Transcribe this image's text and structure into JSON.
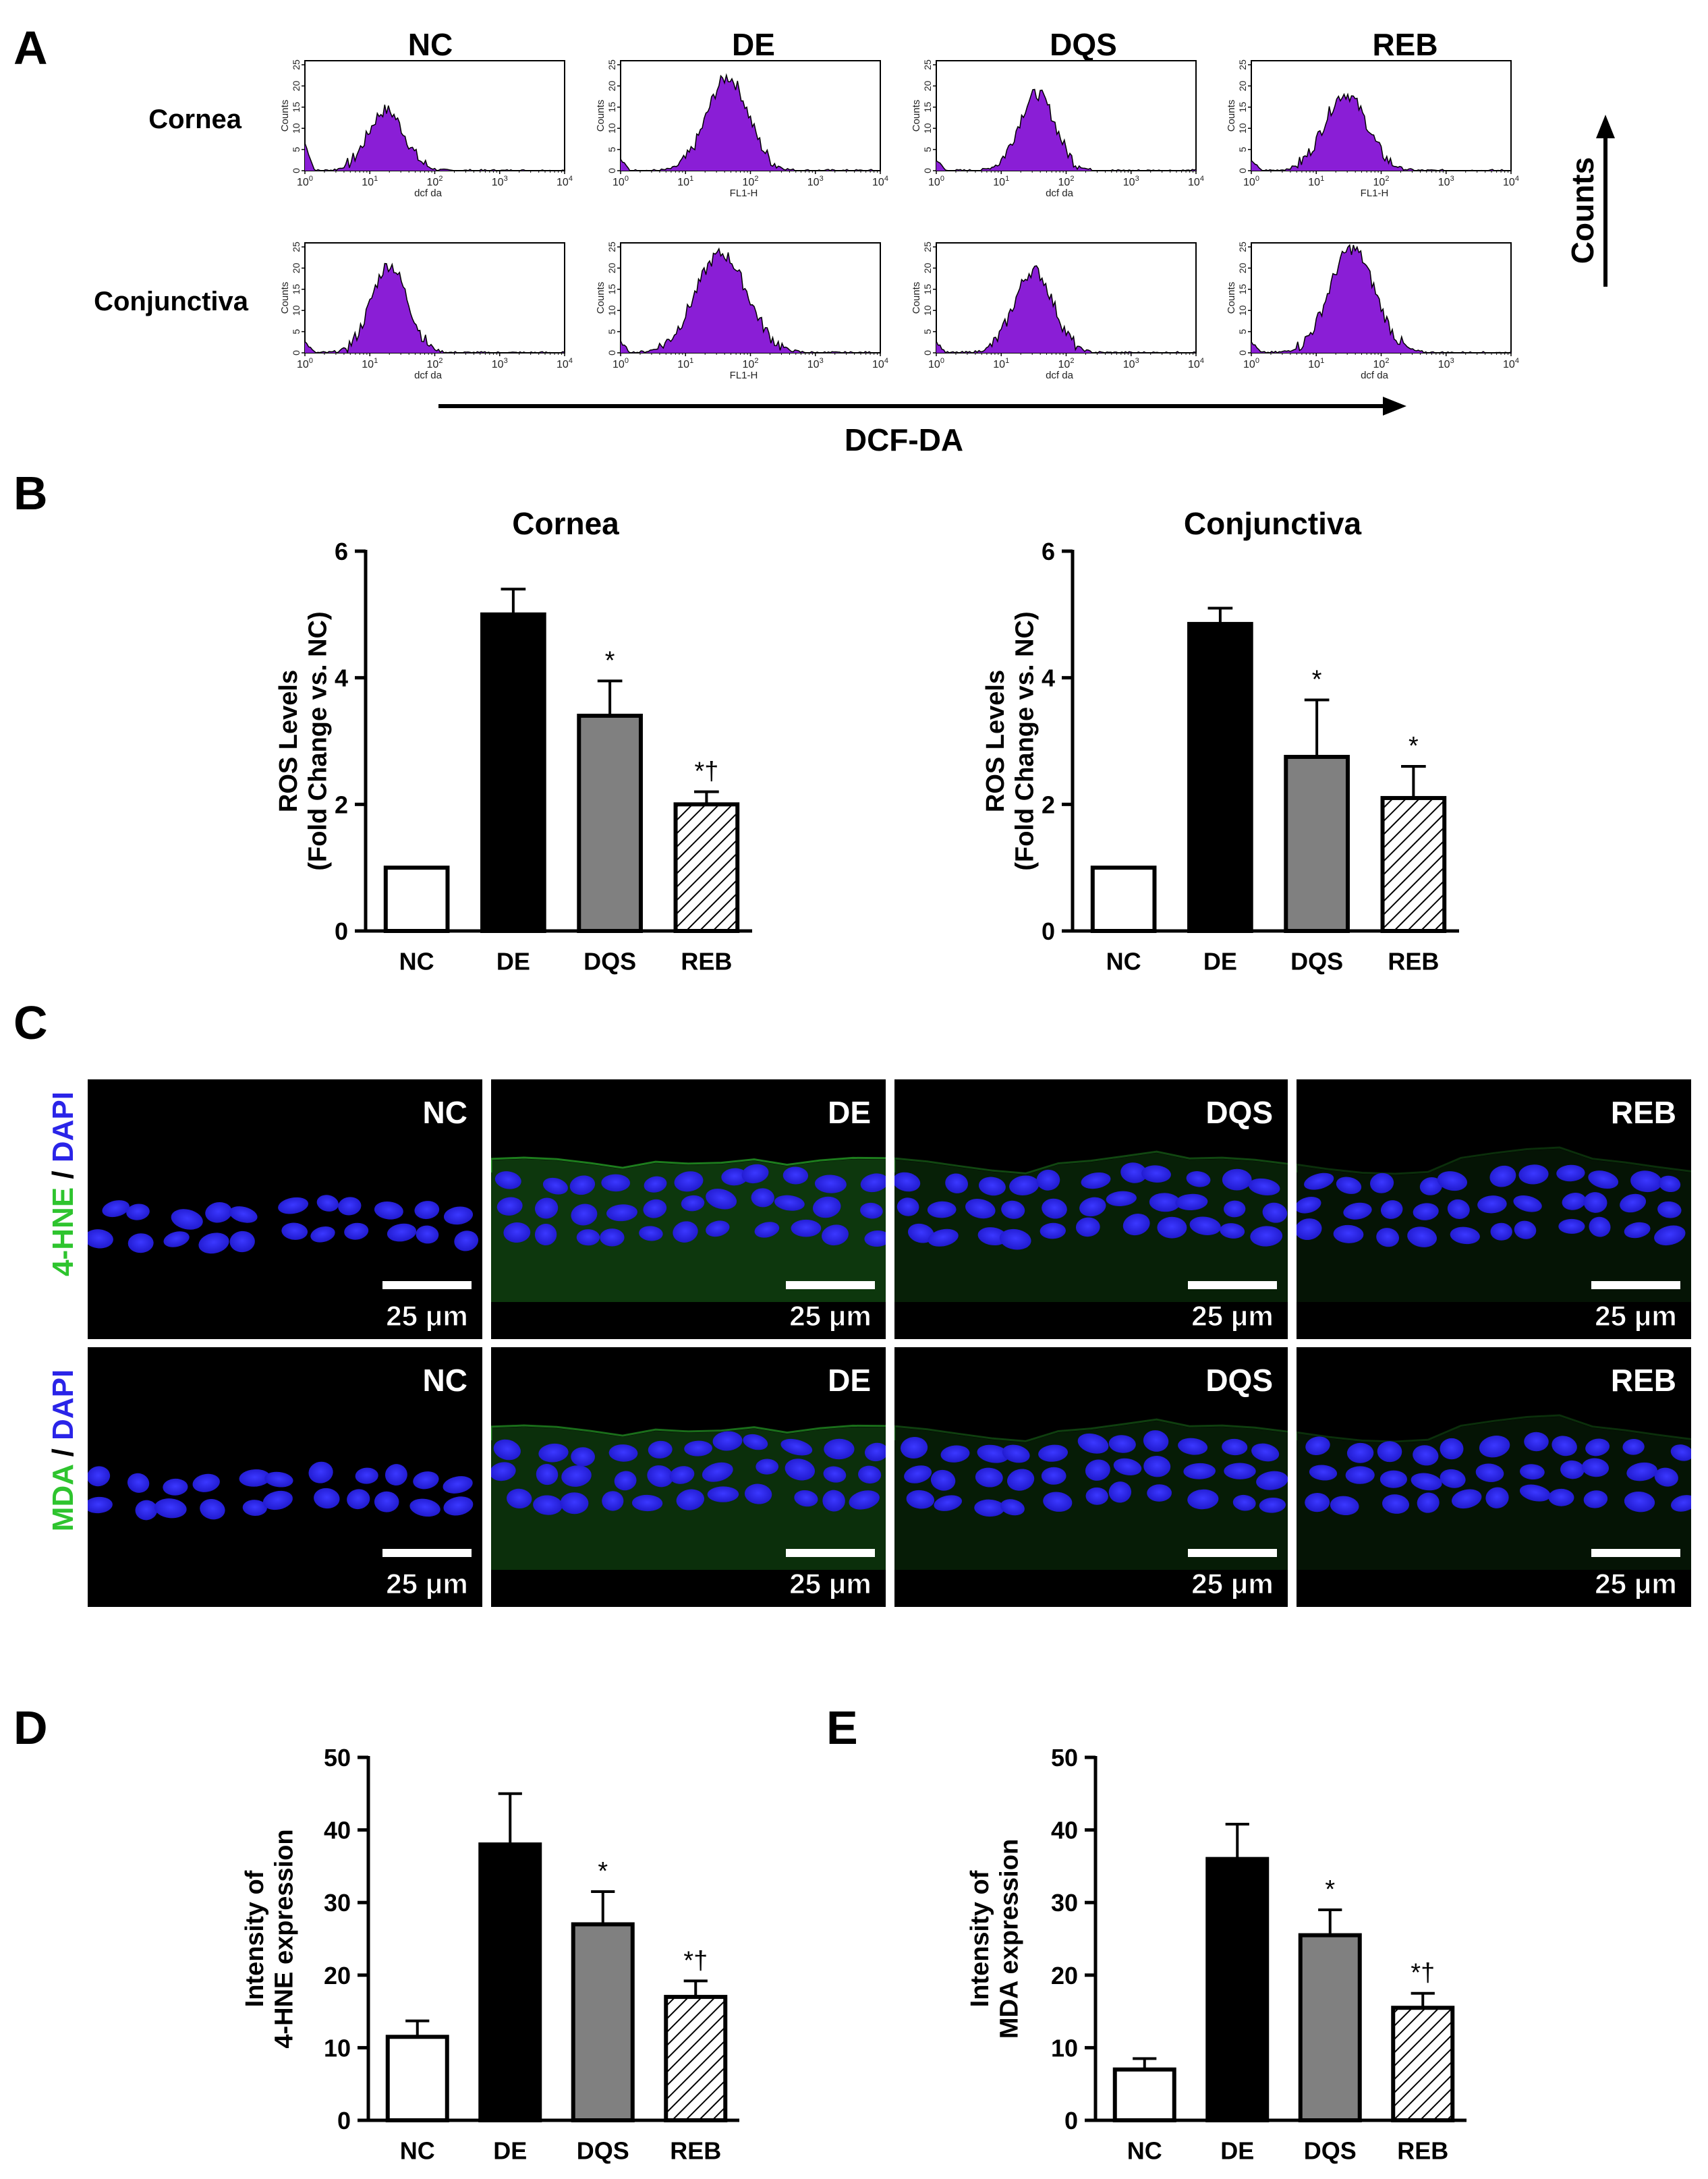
{
  "panels": {
    "A": "A",
    "B": "B",
    "C": "C",
    "D": "D",
    "E": "E"
  },
  "colors": {
    "histogram_fill": "#8a1ed6",
    "bar_nc": "#ffffff",
    "bar_de": "#000000",
    "bar_dqs": "#808080",
    "green_stain": "#2ec42e",
    "blue_stain": "#2a24e8"
  },
  "panel_a": {
    "groups": [
      "NC",
      "DE",
      "DQS",
      "REB"
    ],
    "tissues": [
      "Cornea",
      "Conjunctiva"
    ],
    "y_axis_label": "Counts",
    "y_ticks": [
      "0",
      "5",
      "10",
      "15",
      "20",
      "25"
    ],
    "x_tick_bases": [
      "10",
      "10",
      "10",
      "10",
      "10"
    ],
    "x_tick_exps": [
      "0",
      "1",
      "2",
      "3",
      "4"
    ],
    "x_labels": [
      [
        "dcf da",
        "FL1-H",
        "dcf da",
        "FL1-H"
      ],
      [
        "dcf da",
        "FL1-H",
        "dcf da",
        "dcf da"
      ]
    ],
    "x_axis_title": "DCF-DA",
    "counts_axis_title": "Counts"
  },
  "panel_c": {
    "groups": [
      "NC",
      "DE",
      "DQS",
      "REB"
    ],
    "rows": [
      {
        "stain_green": "4-HNE",
        "sep": " / ",
        "stain_blue": "DAPI"
      },
      {
        "stain_green": "MDA",
        "sep": " / ",
        "stain_blue": "DAPI"
      }
    ],
    "scale_label": "25 μm"
  },
  "chart_data": [
    {
      "id": "B-cornea",
      "type": "bar",
      "title": "Cornea",
      "ylabel_lines": [
        "ROS Levels",
        "(Fold Change vs. NC)"
      ],
      "categories": [
        "NC",
        "DE",
        "DQS",
        "REB"
      ],
      "values": [
        1.0,
        5.0,
        3.4,
        2.0
      ],
      "errors": [
        0,
        0.4,
        0.55,
        0.2
      ],
      "annotations": [
        "",
        "",
        "*",
        "*†"
      ],
      "ylim": [
        0,
        6
      ],
      "yticks": [
        "0",
        "2",
        "4",
        "6"
      ]
    },
    {
      "id": "B-conjunctiva",
      "type": "bar",
      "title": "Conjunctiva",
      "ylabel_lines": [
        "ROS Levels",
        "(Fold Change vs. NC)"
      ],
      "categories": [
        "NC",
        "DE",
        "DQS",
        "REB"
      ],
      "values": [
        1.0,
        4.85,
        2.75,
        2.1
      ],
      "errors": [
        0,
        0.25,
        0.9,
        0.5
      ],
      "annotations": [
        "",
        "",
        "*",
        "*"
      ],
      "ylim": [
        0,
        6
      ],
      "yticks": [
        "0",
        "2",
        "4",
        "6"
      ]
    },
    {
      "id": "D",
      "type": "bar",
      "title": "",
      "ylabel_lines": [
        "Intensity of",
        "4-HNE expression"
      ],
      "categories": [
        "NC",
        "DE",
        "DQS",
        "REB"
      ],
      "values": [
        11.5,
        38,
        27,
        17
      ],
      "errors": [
        2.2,
        7,
        4.5,
        2.2
      ],
      "annotations": [
        "",
        "",
        "*",
        "*†"
      ],
      "ylim": [
        0,
        50
      ],
      "yticks": [
        "0",
        "10",
        "20",
        "30",
        "40",
        "50"
      ]
    },
    {
      "id": "E",
      "type": "bar",
      "title": "",
      "ylabel_lines": [
        "Intensity of",
        "MDA expression"
      ],
      "categories": [
        "NC",
        "DE",
        "DQS",
        "REB"
      ],
      "values": [
        7,
        36,
        25.5,
        15.5
      ],
      "errors": [
        1.5,
        4.8,
        3.5,
        2.0
      ],
      "annotations": [
        "",
        "",
        "*",
        "*†"
      ],
      "ylim": [
        0,
        50
      ],
      "yticks": [
        "0",
        "10",
        "20",
        "30",
        "40",
        "50"
      ]
    }
  ]
}
